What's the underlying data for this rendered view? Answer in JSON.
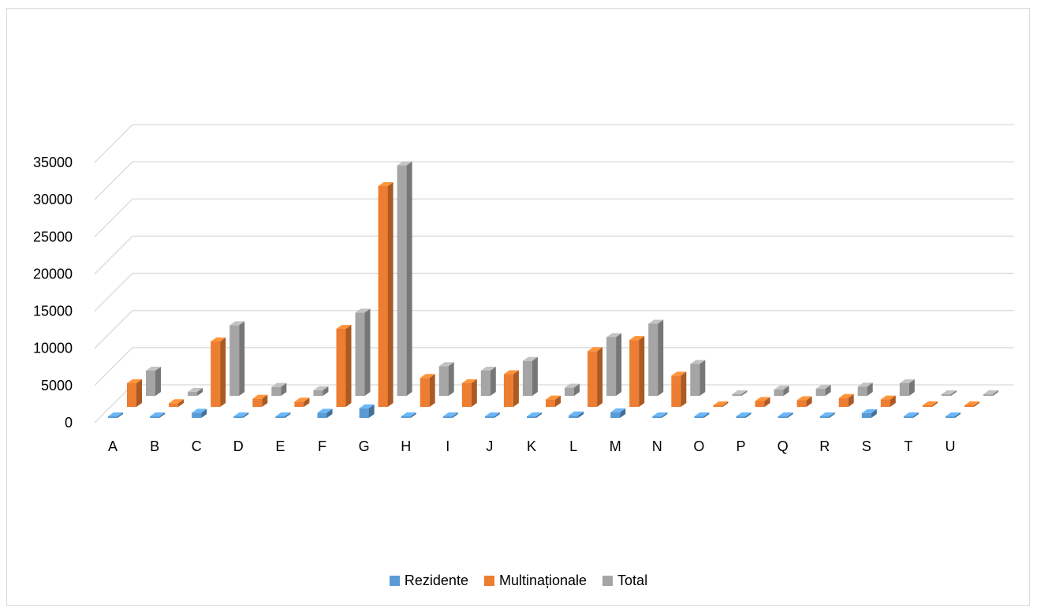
{
  "chart_data": {
    "type": "bar",
    "title": "",
    "xlabel": "",
    "ylabel": "",
    "ylim": [
      0,
      35000
    ],
    "yticks": [
      "0",
      "5000",
      "10000",
      "15000",
      "20000",
      "25000",
      "30000",
      "35000"
    ],
    "grid": true,
    "legend_position": "bottom",
    "categories": [
      "A",
      "B",
      "C",
      "D",
      "E",
      "F",
      "G",
      "H",
      "I",
      "J",
      "K",
      "L",
      "M",
      "N",
      "O",
      "P",
      "Q",
      "R",
      "S",
      "T",
      "U"
    ],
    "series": [
      {
        "name": "Rezidente",
        "color": "#5b9bd5",
        "values": [
          150,
          30,
          700,
          30,
          40,
          700,
          1300,
          80,
          200,
          150,
          60,
          350,
          750,
          100,
          20,
          40,
          60,
          40,
          650,
          20,
          15
        ]
      },
      {
        "name": "Multinaționale",
        "color": "#ed7d31",
        "values": [
          3200,
          500,
          8800,
          1100,
          700,
          10500,
          29700,
          3900,
          3200,
          4400,
          1000,
          7500,
          9000,
          4200,
          100,
          800,
          900,
          1200,
          1000,
          150,
          200
        ]
      },
      {
        "name": "Total",
        "color": "#a5a5a5",
        "values": [
          3400,
          550,
          9500,
          1200,
          750,
          11200,
          31000,
          4000,
          3400,
          4700,
          1100,
          7900,
          9700,
          4300,
          150,
          850,
          950,
          1250,
          1700,
          170,
          230
        ]
      }
    ]
  }
}
